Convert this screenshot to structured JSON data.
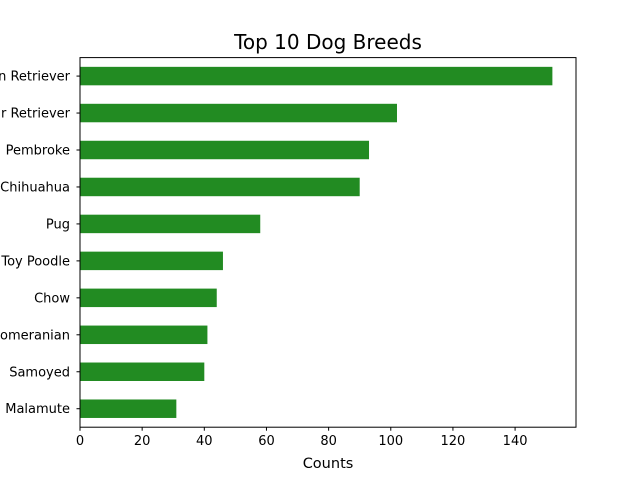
{
  "chart_data": {
    "type": "bar",
    "orientation": "horizontal",
    "title": "Top 10 Dog Breeds",
    "xlabel": "Counts",
    "ylabel": "",
    "xlim": [
      0,
      159.6
    ],
    "xticks": [
      0,
      20,
      40,
      60,
      80,
      100,
      120,
      140
    ],
    "categories": [
      "n Retriever",
      "r Retriever",
      "Pembroke",
      "Chihuahua",
      "Pug",
      "Toy Poodle",
      "Chow",
      "omeranian",
      "Samoyed",
      "Malamute"
    ],
    "values": [
      152,
      102,
      93,
      90,
      58,
      46,
      44,
      41,
      40,
      31
    ],
    "bar_color": "#228b22",
    "grid": false,
    "legend": "none"
  }
}
